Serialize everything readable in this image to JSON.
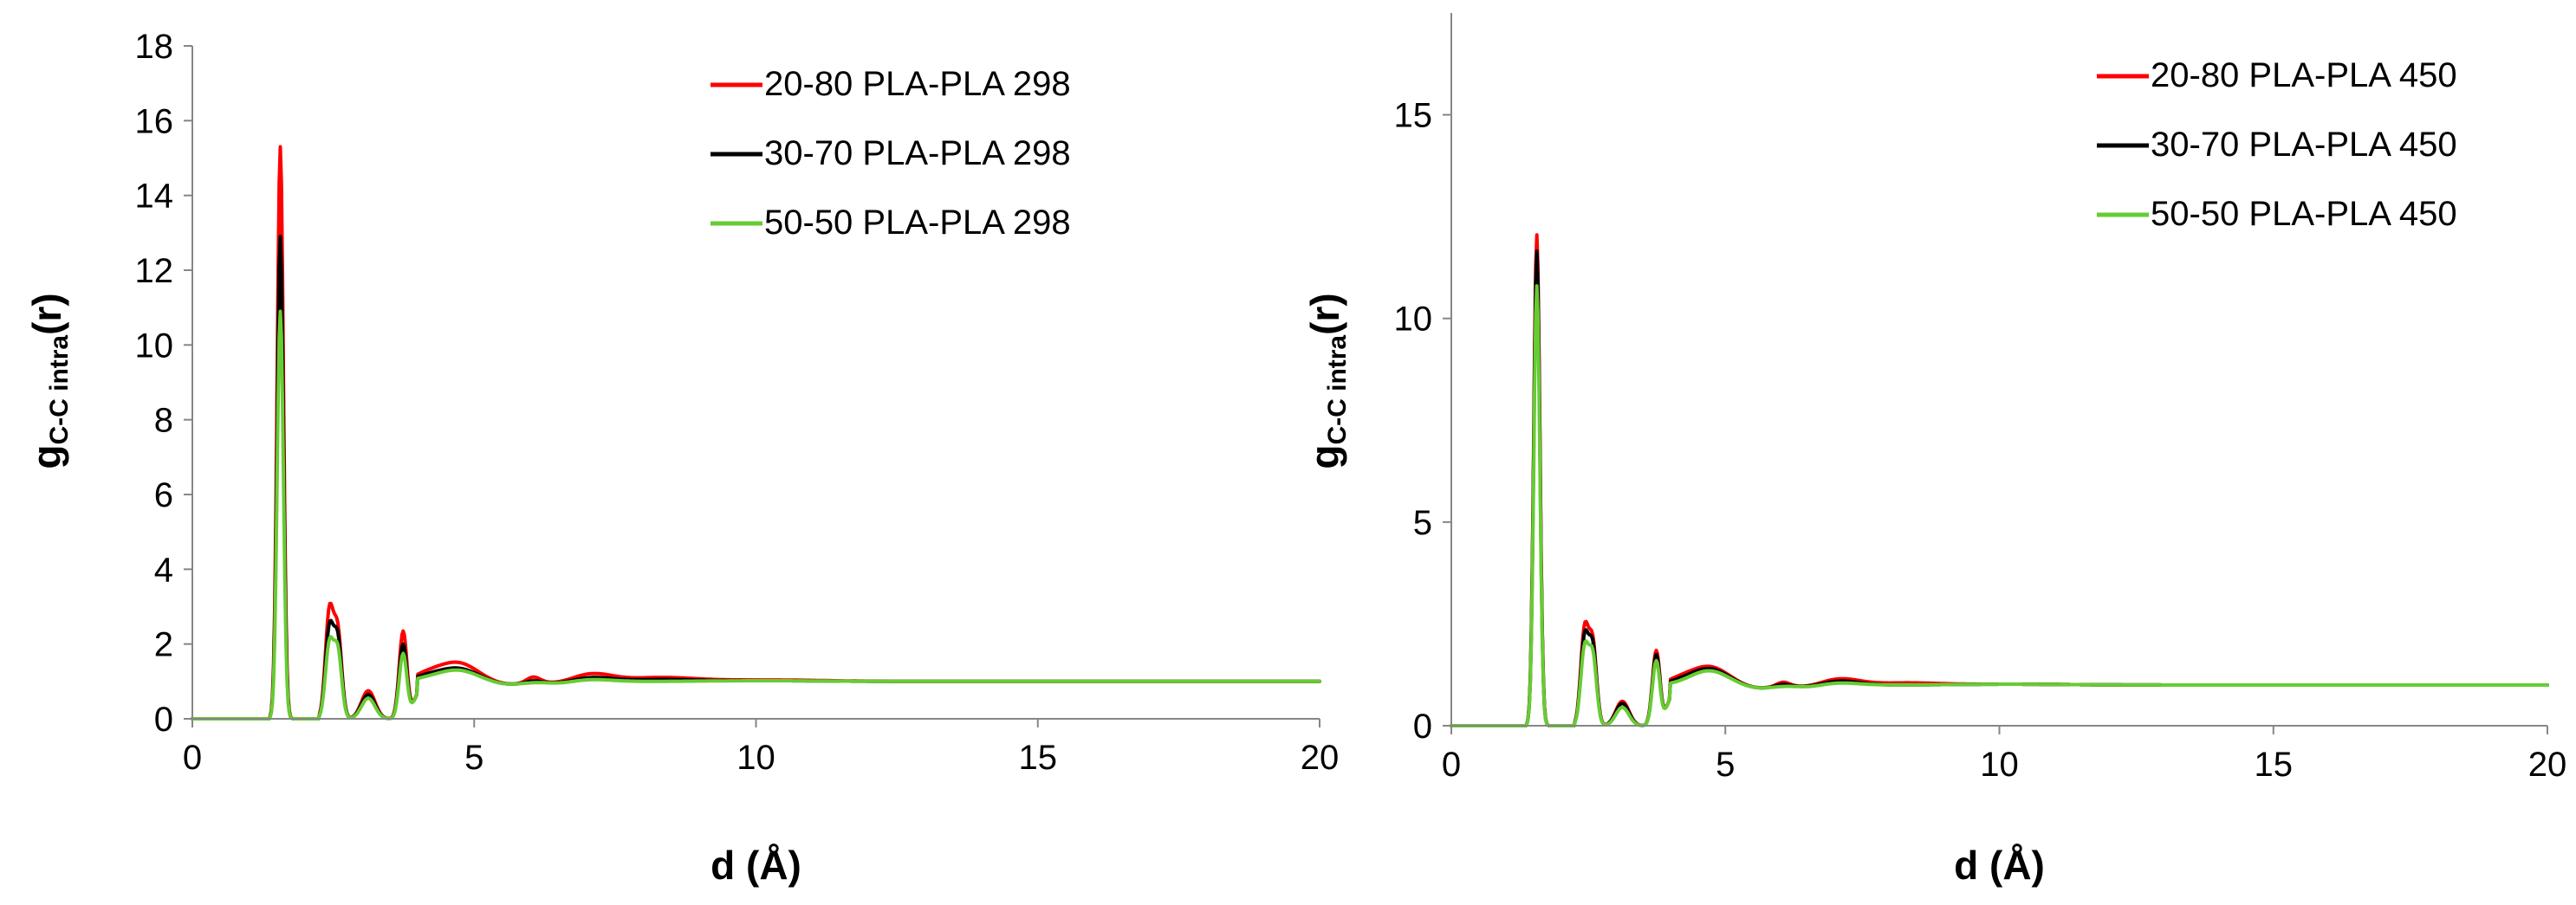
{
  "chart_data": [
    {
      "type": "line",
      "xlabel": "d (Å)",
      "ylabel": {
        "main": "g",
        "sub": "C-C intra",
        "tail": "(r)"
      },
      "xlim": [
        0,
        20
      ],
      "ylim": [
        0,
        18
      ],
      "xticks": [
        0,
        5,
        10,
        15,
        20
      ],
      "yticks": [
        0,
        2,
        4,
        6,
        8,
        10,
        12,
        14,
        16,
        18
      ],
      "grid": false,
      "legend_position": "top-right",
      "colors": [
        "#ff0000",
        "#000000",
        "#66cc33"
      ],
      "series": [
        {
          "name": "20-80 PLA-PLA 298",
          "peaks": {
            "p1": 15.3,
            "p2": 2.8,
            "p2b": 2.3,
            "p3": 0.75,
            "p4": 2.35,
            "p5": 1.15,
            "p6": 1.5,
            "p7": 1.15,
            "p8": 1.2,
            "p9": 1.1,
            "tail": 1.0
          }
        },
        {
          "name": "30-70 PLA-PLA 298",
          "peaks": {
            "p1": 12.9,
            "p2": 2.35,
            "p2b": 2.1,
            "p3": 0.65,
            "p4": 2.0,
            "p5": 1.1,
            "p6": 1.35,
            "p7": 1.05,
            "p8": 1.1,
            "p9": 1.05,
            "tail": 1.0
          }
        },
        {
          "name": "50-50 PLA-PLA 298",
          "peaks": {
            "p1": 10.9,
            "p2": 1.95,
            "p2b": 1.8,
            "p3": 0.55,
            "p4": 1.75,
            "p5": 1.05,
            "p6": 1.3,
            "p7": 1.0,
            "p8": 1.05,
            "p9": 1.0,
            "tail": 1.0
          }
        }
      ]
    },
    {
      "type": "line",
      "xlabel": "d (Å)",
      "ylabel": {
        "main": "g",
        "sub": "C-C intra",
        "tail": "(r)"
      },
      "xlim": [
        0,
        20
      ],
      "ylim": [
        0,
        17.5
      ],
      "xticks": [
        0,
        5,
        10,
        15,
        20
      ],
      "yticks": [
        0,
        5,
        10,
        15
      ],
      "grid": false,
      "legend_position": "top-right",
      "colors": [
        "#ff0000",
        "#000000",
        "#66cc33"
      ],
      "series": [
        {
          "name": "20-80 PLA-PLA 450",
          "peaks": {
            "p1": 12.05,
            "p2": 2.3,
            "p2b": 2.0,
            "p3": 0.6,
            "p4": 1.85,
            "p5": 1.1,
            "p6": 1.45,
            "p7": 1.1,
            "p8": 1.15,
            "p9": 1.05,
            "tail": 1.0
          }
        },
        {
          "name": "30-70 PLA-PLA 450",
          "peaks": {
            "p1": 11.65,
            "p2": 2.1,
            "p2b": 1.9,
            "p3": 0.55,
            "p4": 1.75,
            "p5": 1.05,
            "p6": 1.4,
            "p7": 1.05,
            "p8": 1.1,
            "p9": 1.0,
            "tail": 1.0
          }
        },
        {
          "name": "50-50 PLA-PLA 450",
          "peaks": {
            "p1": 10.8,
            "p2": 1.85,
            "p2b": 1.7,
            "p3": 0.45,
            "p4": 1.6,
            "p5": 1.0,
            "p6": 1.35,
            "p7": 1.0,
            "p8": 1.05,
            "p9": 1.0,
            "tail": 1.0
          }
        }
      ]
    }
  ]
}
